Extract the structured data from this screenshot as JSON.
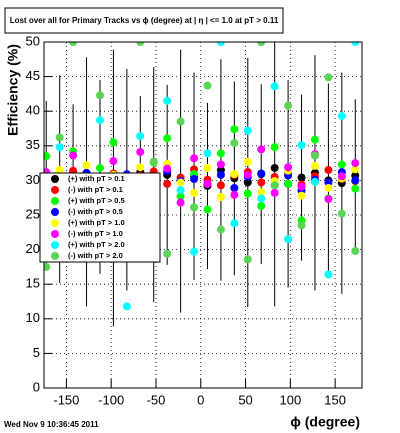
{
  "chart_data": {
    "type": "scatter",
    "title": "Lost over all for Primary Tracks vs ϕ (degree) at | η | <= 1.0 at pT > 0.11",
    "x_label": "ϕ (degree)",
    "y_label": "Efficiency (%)",
    "footer": "Wed Nov  9 10:36:45 2011",
    "xlim": [
      -175,
      180
    ],
    "ylim": [
      0,
      50
    ],
    "xticks": [
      -150,
      -100,
      -50,
      0,
      50,
      100,
      150
    ],
    "yticks": [
      0,
      5,
      10,
      15,
      20,
      25,
      30,
      35,
      40,
      45,
      50
    ],
    "grid": true,
    "legend": "left",
    "x": [
      -172.5,
      -157.5,
      -142.5,
      -127.5,
      -112.5,
      -97.5,
      -82.5,
      -67.5,
      -52.5,
      -37.5,
      -22.5,
      -7.5,
      7.5,
      22.5,
      37.5,
      52.5,
      67.5,
      82.5,
      97.5,
      112.5,
      127.5,
      142.5,
      157.5,
      172.5
    ],
    "series": [
      {
        "name": "(+) with pT > 0.1",
        "color": "#000000",
        "values": [
          29.5,
          30.2,
          31.0,
          29.8,
          30.5,
          28.9,
          30.1,
          31.2,
          29.4,
          30.8,
          29.9,
          30.6,
          29.2,
          31.5,
          30.3,
          29.7,
          30.9,
          31.8,
          29.5,
          30.4,
          31.1,
          30.0,
          29.6,
          30.7
        ],
        "errors": [
          12,
          15,
          10,
          18,
          14,
          20,
          16,
          11,
          17,
          13,
          19,
          15,
          12,
          16,
          14,
          18,
          13,
          20,
          15,
          12,
          17,
          14,
          16,
          11
        ]
      },
      {
        "name": "(-) with pT > 0.1",
        "color": "#ff0000",
        "values": [
          30.5,
          29.6,
          31.4,
          30.2,
          28.8,
          31.0,
          29.9,
          30.7,
          31.3,
          29.5,
          30.4,
          31.6,
          30.1,
          29.3,
          30.8,
          31.2,
          29.7,
          30.5,
          31.0,
          29.4,
          30.6,
          31.5,
          30.2,
          29.9
        ]
      },
      {
        "name": "(+) with pT > 0.5",
        "color": "#00ff00",
        "values": [
          33.5,
          27.0,
          34.2,
          26.5,
          31.8,
          35.5,
          28.4,
          24.9,
          32.6,
          36.1,
          27.7,
          30.9,
          25.8,
          33.9,
          37.4,
          28.1,
          26.3,
          34.8,
          29.5,
          24.2,
          35.9,
          27.4,
          32.3,
          28.8
        ]
      },
      {
        "name": "(-) with pT > 0.5",
        "color": "#0000ff",
        "values": [
          29.8,
          30.6,
          29.2,
          31.1,
          30.3,
          29.6,
          30.9,
          28.7,
          30.4,
          31.3,
          29.9,
          30.2,
          29.5,
          30.8,
          28.9,
          30.5,
          31.0,
          29.3,
          30.7,
          28.5,
          30.1,
          29.7,
          31.2,
          30.0
        ]
      },
      {
        "name": "(+) with pT > 1.0",
        "color": "#ffff00",
        "values": [
          28.5,
          31.5,
          27.9,
          32.2,
          29.1,
          30.8,
          27.4,
          31.9,
          28.6,
          32.4,
          29.7,
          28.2,
          31.8,
          27.6,
          30.9,
          32.7,
          28.3,
          29.9,
          31.4,
          27.8,
          32.1,
          28.9,
          30.3,
          31.6
        ]
      },
      {
        "name": "(-) with pT > 1.0",
        "color": "#ff00ff",
        "values": [
          31.2,
          28.4,
          33.6,
          29.7,
          27.5,
          32.8,
          30.4,
          34.1,
          28.9,
          31.7,
          26.8,
          33.2,
          29.5,
          32.3,
          27.9,
          30.8,
          34.5,
          28.2,
          31.9,
          29.1,
          33.8,
          27.3,
          30.6,
          32.5
        ]
      },
      {
        "name": "(+) with pT > 2.0",
        "color": "#00ffff",
        "values": [
          26.5,
          34.8,
          50,
          22.3,
          38.7,
          30.2,
          11.8,
          36.4,
          24.9,
          41.5,
          28.6,
          19.7,
          33.9,
          50,
          23.8,
          37.2,
          27.4,
          43.6,
          21.5,
          35.1,
          29.8,
          16.4,
          39.3,
          50
        ]
      },
      {
        "name": "(-) with pT > 2.0",
        "color": "#59d454",
        "values": [
          17.5,
          36.2,
          50,
          24.8,
          42.3,
          28.9,
          20.6,
          50,
          32.7,
          19.4,
          38.5,
          26.1,
          43.7,
          22.9,
          35.4,
          18.6,
          50,
          29.3,
          40.8,
          23.5,
          33.6,
          44.9,
          25.2,
          19.8
        ]
      }
    ]
  }
}
